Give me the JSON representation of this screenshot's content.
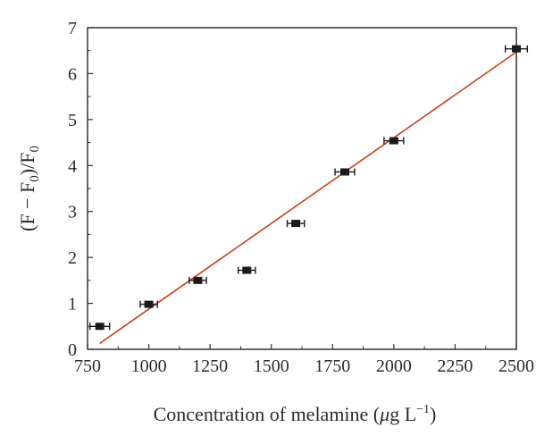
{
  "chart_data": {
    "type": "scatter",
    "xlabel": "Concentration of melamine (μg L⁻¹)",
    "xlabel_parts": {
      "main": "Concentration of melamine (",
      "mu": "μ",
      "unit": "g L",
      "sup": "−1",
      "close": ")"
    },
    "ylabel": "(F − F₀)/F₀",
    "ylabel_parts": {
      "a": "(F − F",
      "sub1": "0",
      "b": ")/F",
      "sub2": "0"
    },
    "xlim": [
      750,
      2500
    ],
    "ylim": [
      0,
      7
    ],
    "x_ticks": [
      "750",
      "1000",
      "1250",
      "1500",
      "1750",
      "2000",
      "2250",
      "2500"
    ],
    "y_ticks": [
      "0",
      "1",
      "2",
      "3",
      "4",
      "5",
      "6",
      "7"
    ],
    "grid": false,
    "points": [
      {
        "x": 800,
        "y": 0.5,
        "err_x": 40
      },
      {
        "x": 1000,
        "y": 0.98,
        "err_x": 35
      },
      {
        "x": 1200,
        "y": 1.5,
        "err_x": 35
      },
      {
        "x": 1400,
        "y": 1.72,
        "err_x": 35
      },
      {
        "x": 1600,
        "y": 2.74,
        "err_x": 35
      },
      {
        "x": 1800,
        "y": 3.86,
        "err_x": 40
      },
      {
        "x": 2000,
        "y": 4.54,
        "err_x": 40
      },
      {
        "x": 2500,
        "y": 6.54,
        "err_x": 45
      }
    ],
    "fit_line": {
      "x_start": 800,
      "y_start": 0.13,
      "x_end": 2500,
      "y_end": 6.47
    },
    "colors": {
      "points": "#1a1a1a",
      "fit": "#c8401a",
      "axes": "#333333"
    }
  }
}
